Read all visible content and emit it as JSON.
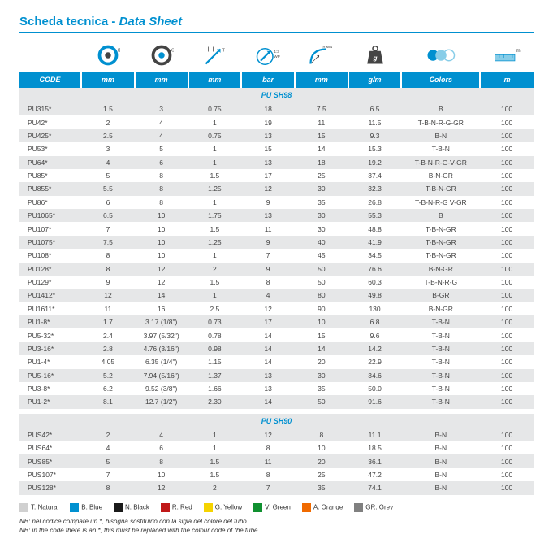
{
  "title": {
    "main": "Scheda tecnica",
    "sep": " - ",
    "sub": "Data Sheet"
  },
  "colors": {
    "brand": "#0090d0",
    "row_alt": "#e6e7e8",
    "header_text": "#ffffff"
  },
  "icons": {
    "id_label": "ID",
    "od_label": "OD",
    "t_label": "T",
    "wp_label": "1:3\nWP",
    "rmin_label": "R MIN",
    "weight_label": "g",
    "colors_label": "",
    "length_label": "m"
  },
  "headers": [
    "CODE",
    "mm",
    "mm",
    "mm",
    "bar",
    "mm",
    "g/m",
    "Colors",
    "m"
  ],
  "sections": [
    {
      "name": "PU SH98",
      "rows": [
        [
          "PU315*",
          "1.5",
          "3",
          "0.75",
          "18",
          "7.5",
          "6.5",
          "B",
          "100"
        ],
        [
          "PU42*",
          "2",
          "4",
          "1",
          "19",
          "11",
          "11.5",
          "T-B-N-R-G-GR",
          "100"
        ],
        [
          "PU425*",
          "2.5",
          "4",
          "0.75",
          "13",
          "15",
          "9.3",
          "B-N",
          "100"
        ],
        [
          "PU53*",
          "3",
          "5",
          "1",
          "15",
          "14",
          "15.3",
          "T-B-N",
          "100"
        ],
        [
          "PU64*",
          "4",
          "6",
          "1",
          "13",
          "18",
          "19.2",
          "T-B-N-R-G-V-GR",
          "100"
        ],
        [
          "PU85*",
          "5",
          "8",
          "1.5",
          "17",
          "25",
          "37.4",
          "B-N-GR",
          "100"
        ],
        [
          "PU855*",
          "5.5",
          "8",
          "1.25",
          "12",
          "30",
          "32.3",
          "T-B-N-GR",
          "100"
        ],
        [
          "PU86*",
          "6",
          "8",
          "1",
          "9",
          "35",
          "26.8",
          "T-B-N-R-G V-GR",
          "100"
        ],
        [
          "PU1065*",
          "6.5",
          "10",
          "1.75",
          "13",
          "30",
          "55.3",
          "B",
          "100"
        ],
        [
          "PU107*",
          "7",
          "10",
          "1.5",
          "11",
          "30",
          "48.8",
          "T-B-N-GR",
          "100"
        ],
        [
          "PU1075*",
          "7.5",
          "10",
          "1.25",
          "9",
          "40",
          "41.9",
          "T-B-N-GR",
          "100"
        ],
        [
          "PU108*",
          "8",
          "10",
          "1",
          "7",
          "45",
          "34.5",
          "T-B-N-GR",
          "100"
        ],
        [
          "PU128*",
          "8",
          "12",
          "2",
          "9",
          "50",
          "76.6",
          "B-N-GR",
          "100"
        ],
        [
          "PU129*",
          "9",
          "12",
          "1.5",
          "8",
          "50",
          "60.3",
          "T-B-N-R-G",
          "100"
        ],
        [
          "PU1412*",
          "12",
          "14",
          "1",
          "4",
          "80",
          "49.8",
          "B-GR",
          "100"
        ],
        [
          "PU1611*",
          "11",
          "16",
          "2.5",
          "12",
          "90",
          "130",
          "B-N-GR",
          "100"
        ],
        [
          "PU1-8*",
          "1.7",
          "3.17 (1/8\")",
          "0.73",
          "17",
          "10",
          "6.8",
          "T-B-N",
          "100"
        ],
        [
          "PU5-32*",
          "2.4",
          "3.97 (5/32\")",
          "0.78",
          "14",
          "15",
          "9.6",
          "T-B-N",
          "100"
        ],
        [
          "PU3-16*",
          "2.8",
          "4.76 (3/16\")",
          "0.98",
          "14",
          "14",
          "14.2",
          "T-B-N",
          "100"
        ],
        [
          "PU1-4*",
          "4.05",
          "6.35 (1/4\")",
          "1.15",
          "14",
          "20",
          "22.9",
          "T-B-N",
          "100"
        ],
        [
          "PU5-16*",
          "5.2",
          "7.94 (5/16\")",
          "1.37",
          "13",
          "30",
          "34.6",
          "T-B-N",
          "100"
        ],
        [
          "PU3-8*",
          "6.2",
          "9.52 (3/8\")",
          "1.66",
          "13",
          "35",
          "50.0",
          "T-B-N",
          "100"
        ],
        [
          "PU1-2*",
          "8.1",
          "12.7 (1/2\")",
          "2.30",
          "14",
          "50",
          "91.6",
          "T-B-N",
          "100"
        ]
      ]
    },
    {
      "name": "PU SH90",
      "rows": [
        [
          "PUS42*",
          "2",
          "4",
          "1",
          "12",
          "8",
          "11.1",
          "B-N",
          "100"
        ],
        [
          "PUS64*",
          "4",
          "6",
          "1",
          "8",
          "10",
          "18.5",
          "B-N",
          "100"
        ],
        [
          "PUS85*",
          "5",
          "8",
          "1.5",
          "11",
          "20",
          "36.1",
          "B-N",
          "100"
        ],
        [
          "PUS107*",
          "7",
          "10",
          "1.5",
          "8",
          "25",
          "47.2",
          "B-N",
          "100"
        ],
        [
          "PUS128*",
          "8",
          "12",
          "2",
          "7",
          "35",
          "74.1",
          "B-N",
          "100"
        ]
      ]
    }
  ],
  "legend": [
    {
      "color": "#d0d0d0",
      "label": "T: Natural"
    },
    {
      "color": "#0090d0",
      "label": "B: Blue"
    },
    {
      "color": "#1a1a1a",
      "label": "N: Black"
    },
    {
      "color": "#c01818",
      "label": "R: Red"
    },
    {
      "color": "#f5d300",
      "label": "G: Yellow"
    },
    {
      "color": "#109030",
      "label": "V: Green"
    },
    {
      "color": "#f06a00",
      "label": "A: Orange"
    },
    {
      "color": "#808080",
      "label": "GR: Grey"
    }
  ],
  "notes": {
    "line1": "NB: nel codice compare un *, bisogna sostituirlo con la sigla del colore del tubo.",
    "line2": "NB: in the code there is an *, this must be replaced with the colour code of the tube"
  }
}
